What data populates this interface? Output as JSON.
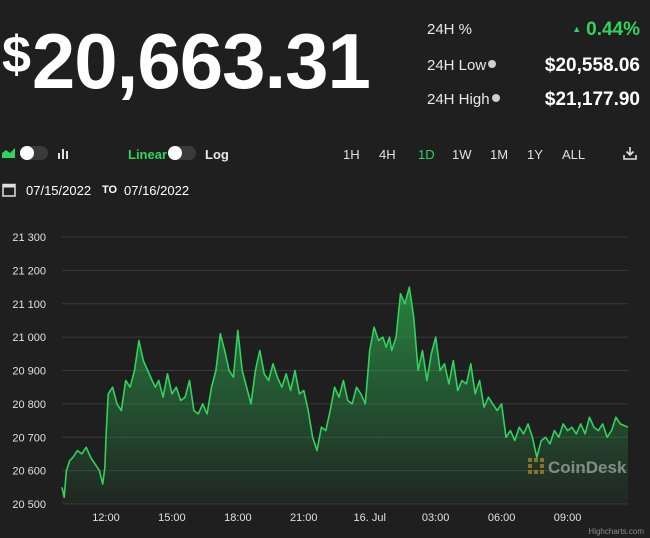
{
  "header": {
    "currency_symbol": "$",
    "price": "20,663.31",
    "stats": [
      {
        "label": "24H %",
        "value": "0.44%",
        "arrow": "▲",
        "color": "#2fd35d"
      },
      {
        "label": "24H Low",
        "value": "$20,558.06"
      },
      {
        "label": "24H High",
        "value": "$21,177.90"
      }
    ]
  },
  "toolbar": {
    "scale_linear": "Linear",
    "scale_log": "Log",
    "ranges": [
      "1H",
      "4H",
      "1D",
      "1W",
      "1M",
      "1Y",
      "ALL"
    ],
    "active_range": "1D",
    "from_date": "07/15/2022",
    "to_label": "TO",
    "to_date": "07/16/2022"
  },
  "watermark": "CoinDesk",
  "credit": "Highcharts.com",
  "chart_data": {
    "type": "area",
    "xlabel": "",
    "ylabel": "",
    "ylim": [
      20500,
      21300
    ],
    "yticks": [
      20500,
      20600,
      20700,
      20800,
      20900,
      21000,
      21100,
      21200,
      21300
    ],
    "xtick_labels": [
      "12:00",
      "15:00",
      "18:00",
      "21:00",
      "16. Jul",
      "03:00",
      "06:00",
      "09:00"
    ],
    "xtick_hours": [
      12,
      15,
      18,
      21,
      24,
      27,
      30,
      33
    ],
    "xlim_hours": [
      10.0,
      35.75
    ],
    "grid": true,
    "color": "#2fd35d",
    "series": [
      {
        "x_hours": [
          10.0,
          10.1,
          10.2,
          10.35,
          10.5,
          10.7,
          10.9,
          11.1,
          11.3,
          11.5,
          11.7,
          11.85,
          11.95,
          12.0,
          12.1,
          12.3,
          12.5,
          12.7,
          12.9,
          13.1,
          13.3,
          13.5,
          13.7,
          13.9,
          14.1,
          14.25,
          14.4,
          14.6,
          14.8,
          15.0,
          15.2,
          15.4,
          15.6,
          15.8,
          16.0,
          16.2,
          16.4,
          16.6,
          16.8,
          17.0,
          17.2,
          17.4,
          17.6,
          17.8,
          18.0,
          18.2,
          18.4,
          18.6,
          18.8,
          19.0,
          19.2,
          19.4,
          19.6,
          19.8,
          20.0,
          20.2,
          20.4,
          20.6,
          20.8,
          21.0,
          21.2,
          21.4,
          21.6,
          21.8,
          22.0,
          22.2,
          22.4,
          22.6,
          22.8,
          23.0,
          23.2,
          23.4,
          23.6,
          23.8,
          24.0,
          24.2,
          24.4,
          24.6,
          24.75,
          24.9,
          25.0,
          25.2,
          25.4,
          25.6,
          25.8,
          26.0,
          26.2,
          26.4,
          26.6,
          26.8,
          27.0,
          27.2,
          27.4,
          27.6,
          27.8,
          28.0,
          28.2,
          28.4,
          28.6,
          28.8,
          29.0,
          29.2,
          29.4,
          29.6,
          29.8,
          30.0,
          30.2,
          30.4,
          30.6,
          30.8,
          31.0,
          31.2,
          31.4,
          31.6,
          31.8,
          32.0,
          32.2,
          32.4,
          32.6,
          32.8,
          33.0,
          33.2,
          33.4,
          33.6,
          33.8,
          34.0,
          34.2,
          34.4,
          34.6,
          34.8,
          35.0,
          35.2,
          35.4,
          35.75
        ],
        "values": [
          20550,
          20520,
          20600,
          20630,
          20640,
          20660,
          20650,
          20670,
          20640,
          20620,
          20600,
          20560,
          20610,
          20700,
          20830,
          20850,
          20800,
          20780,
          20870,
          20850,
          20900,
          20990,
          20930,
          20900,
          20870,
          20850,
          20870,
          20820,
          20890,
          20830,
          20850,
          20810,
          20820,
          20870,
          20780,
          20770,
          20800,
          20770,
          20850,
          20900,
          21010,
          20960,
          20900,
          20880,
          21020,
          20900,
          20850,
          20800,
          20900,
          20960,
          20890,
          20870,
          20920,
          20880,
          20850,
          20890,
          20840,
          20900,
          20830,
          20840,
          20780,
          20700,
          20660,
          20730,
          20720,
          20780,
          20850,
          20820,
          20870,
          20810,
          20800,
          20850,
          20830,
          20800,
          20960,
          21030,
          20990,
          21000,
          20970,
          21000,
          20960,
          21000,
          21130,
          21100,
          21150,
          21060,
          20900,
          20960,
          20870,
          20950,
          21000,
          20900,
          20920,
          20860,
          20930,
          20840,
          20870,
          20860,
          20920,
          20830,
          20870,
          20790,
          20820,
          20800,
          20780,
          20800,
          20700,
          20720,
          20690,
          20730,
          20710,
          20740,
          20700,
          20640,
          20690,
          20700,
          20680,
          20720,
          20700,
          20740,
          20720,
          20730,
          20710,
          20740,
          20710,
          20760,
          20730,
          20720,
          20740,
          20700,
          20720,
          20760,
          20740,
          20730
        ]
      }
    ]
  }
}
